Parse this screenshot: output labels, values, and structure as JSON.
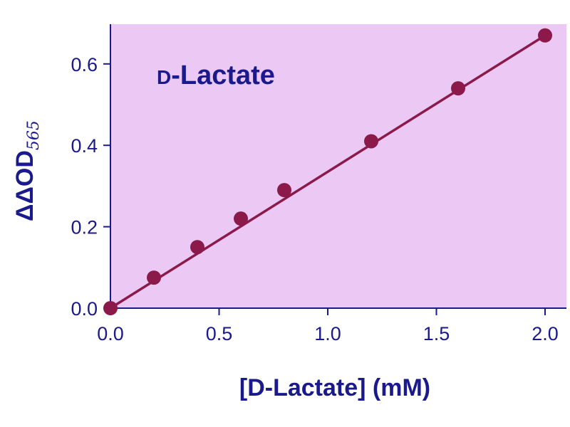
{
  "chart_data": {
    "type": "scatter",
    "title": "D-Lactate",
    "xlabel": "[D-Lactate] (mM)",
    "ylabel": "ΔΔOD565",
    "ylabel_main": "ΔΔOD",
    "ylabel_sub": "565",
    "xlim": [
      0,
      2.1
    ],
    "ylim": [
      0,
      0.7
    ],
    "x_ticks": [
      "0.0",
      "0.5",
      "1.0",
      "1.5",
      "2.0"
    ],
    "y_ticks": [
      "0.0",
      "0.2",
      "0.4",
      "0.6"
    ],
    "grid": false,
    "legend": "none",
    "series": [
      {
        "x": [
          0,
          0.2,
          0.4,
          0.6,
          0.8,
          1.2,
          1.6,
          2.0
        ],
        "y": [
          0.0,
          0.075,
          0.15,
          0.22,
          0.29,
          0.41,
          0.54,
          0.67
        ]
      }
    ],
    "fit_line": {
      "x": [
        0,
        2.0
      ],
      "y": [
        0.0,
        0.67
      ]
    },
    "colors": {
      "plot_background": "#ecc8f4",
      "axis": "#1a1a8c",
      "points": "#8b1a4a",
      "line": "#8b1a4a",
      "text": "#1a1a8c"
    }
  }
}
